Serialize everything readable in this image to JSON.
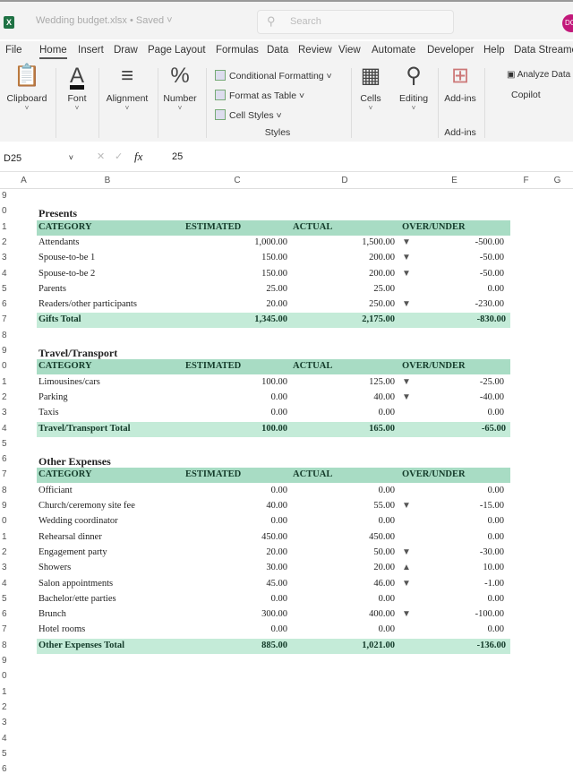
{
  "app": {
    "doc_title": "Wedding budget.xlsx • Saved ˅",
    "search_placeholder": "Search",
    "avatar": "DC",
    "logo": "X"
  },
  "tabs": [
    "File",
    "Home",
    "Insert",
    "Draw",
    "Page Layout",
    "Formulas",
    "Data",
    "Review",
    "View",
    "Automate",
    "Developer",
    "Help",
    "Data Streamer"
  ],
  "active_tab": "Home",
  "ribbon": {
    "clipboard": "Clipboard",
    "font": "Font",
    "alignment": "Alignment",
    "number": "Number",
    "conditional_formatting": "Conditional Formatting ˅",
    "format_as_table": "Format as Table ˅",
    "cell_styles": "Cell Styles ˅",
    "styles_group": "Styles",
    "cells": "Cells",
    "editing": "Editing",
    "addins": "Add-ins",
    "addins_group": "Add-ins",
    "analyze_data": "Analyze Data",
    "copilot": "Copilot"
  },
  "formula_bar": {
    "name_box": "D25",
    "fx": "fx",
    "value": "25"
  },
  "columns": [
    "A",
    "B",
    "C",
    "D",
    "E",
    "F",
    "G"
  ],
  "row_numbers": [
    "9",
    "0",
    "1",
    "2",
    "3",
    "4",
    "5",
    "6",
    "7",
    "8",
    "9",
    "0",
    "1",
    "2",
    "3",
    "4",
    "5",
    "6",
    "7",
    "8",
    "9",
    "0",
    "1",
    "2",
    "3",
    "4",
    "5",
    "6",
    "7",
    "8",
    "9",
    "0",
    "1",
    "2",
    "3",
    "4",
    "5",
    "6"
  ],
  "headers": [
    "CATEGORY",
    "ESTIMATED",
    "ACTUAL",
    "OVER/UNDER"
  ],
  "sections": [
    {
      "title": "Presents",
      "rows": [
        [
          "Attendants",
          "1,000.00",
          "1,500.00",
          "down",
          "-500.00"
        ],
        [
          "Spouse-to-be 1",
          "150.00",
          "200.00",
          "down",
          "-50.00"
        ],
        [
          "Spouse-to-be 2",
          "150.00",
          "200.00",
          "down",
          "-50.00"
        ],
        [
          "Parents",
          "25.00",
          "25.00",
          "",
          "0.00"
        ],
        [
          "Readers/other participants",
          "20.00",
          "250.00",
          "down",
          "-230.00"
        ]
      ],
      "total": [
        "Gifts Total",
        "1,345.00",
        "2,175.00",
        "-830.00"
      ]
    },
    {
      "title": "Travel/Transport",
      "rows": [
        [
          "Limousines/cars",
          "100.00",
          "125.00",
          "down",
          "-25.00"
        ],
        [
          "Parking",
          "0.00",
          "40.00",
          "down",
          "-40.00"
        ],
        [
          "Taxis",
          "0.00",
          "0.00",
          "",
          "0.00"
        ]
      ],
      "total": [
        "Travel/Transport Total",
        "100.00",
        "165.00",
        "-65.00"
      ]
    },
    {
      "title": "Other Expenses",
      "rows": [
        [
          "Officiant",
          "0.00",
          "0.00",
          "",
          "0.00"
        ],
        [
          "Church/ceremony site fee",
          "40.00",
          "55.00",
          "down",
          "-15.00"
        ],
        [
          "Wedding coordinator",
          "0.00",
          "0.00",
          "",
          "0.00"
        ],
        [
          "Rehearsal dinner",
          "450.00",
          "450.00",
          "",
          "0.00"
        ],
        [
          "Engagement party",
          "20.00",
          "50.00",
          "down",
          "-30.00"
        ],
        [
          "Showers",
          "30.00",
          "20.00",
          "up",
          "10.00"
        ],
        [
          "Salon appointments",
          "45.00",
          "46.00",
          "down",
          "-1.00"
        ],
        [
          "Bachelor/ette parties",
          "0.00",
          "0.00",
          "",
          "0.00"
        ],
        [
          "Brunch",
          "300.00",
          "400.00",
          "down",
          "-100.00"
        ],
        [
          "Hotel rooms",
          "0.00",
          "0.00",
          "",
          "0.00"
        ]
      ],
      "total": [
        "Other Expenses Total",
        "885.00",
        "1,021.00",
        "-136.00"
      ]
    }
  ],
  "colors": {
    "header_band": "#a8dcc4",
    "total_band": "#c4ebd8",
    "excel_green": "#1f7244"
  }
}
